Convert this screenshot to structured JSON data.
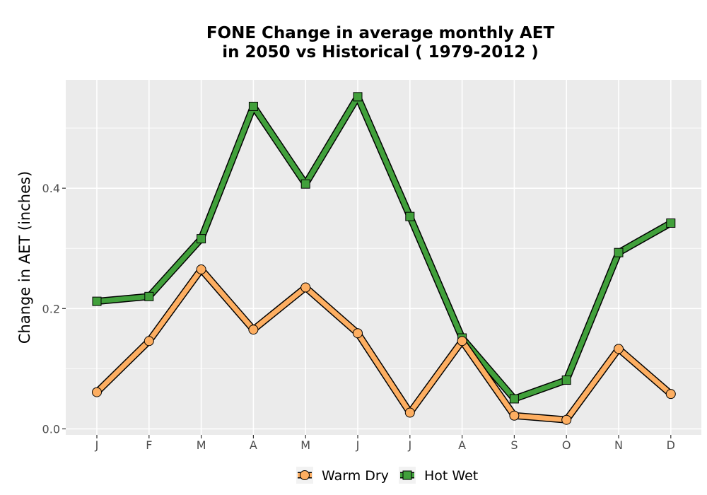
{
  "chart_data": {
    "type": "line",
    "title_lines": [
      "FONE  Change in average monthly AET",
      "in 2050 vs Historical ( 1979-2012 )"
    ],
    "xlabel": "",
    "ylabel": "Change in AET (inches)",
    "categories": [
      "J",
      "F",
      "M",
      "A",
      "M",
      "J",
      "J",
      "A",
      "S",
      "O",
      "N",
      "D"
    ],
    "yticks": [
      "0.0",
      "0.2",
      "0.4"
    ],
    "ylim": [
      -0.01,
      0.58
    ],
    "grid": true,
    "legend_position": "bottom",
    "series": [
      {
        "name": "Warm Dry",
        "color": "#fdae61",
        "marker": "circle",
        "values": [
          0.061,
          0.146,
          0.265,
          0.165,
          0.235,
          0.159,
          0.027,
          0.146,
          0.022,
          0.015,
          0.133,
          0.058
        ]
      },
      {
        "name": "Hot Wet",
        "color": "#41a03b",
        "marker": "square",
        "values": [
          0.212,
          0.22,
          0.316,
          0.536,
          0.407,
          0.552,
          0.353,
          0.151,
          0.05,
          0.081,
          0.293,
          0.342
        ]
      }
    ]
  }
}
